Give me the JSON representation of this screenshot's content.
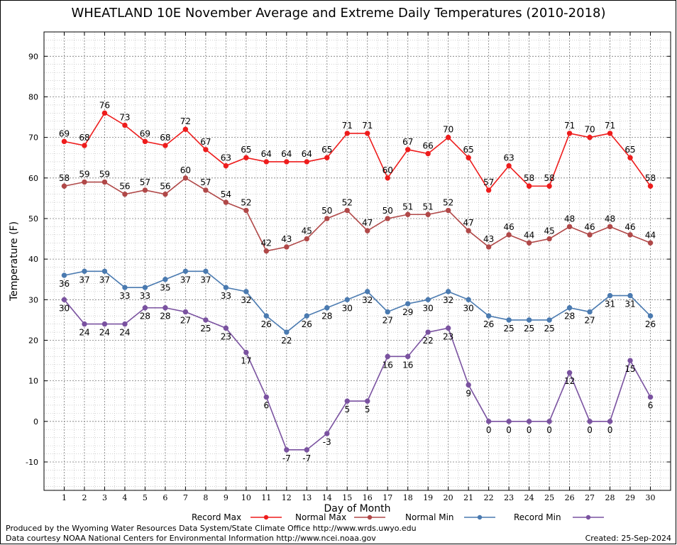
{
  "chart_data": {
    "type": "line",
    "title": "WHEATLAND 10E November Average and Extreme Daily Temperatures (2010-2018)",
    "xlabel": "Day of Month",
    "ylabel": "Temperature (F)",
    "x": [
      1,
      2,
      3,
      4,
      5,
      6,
      7,
      8,
      9,
      10,
      11,
      12,
      13,
      14,
      15,
      16,
      17,
      18,
      19,
      20,
      21,
      22,
      23,
      24,
      25,
      26,
      27,
      28,
      29,
      30
    ],
    "xlim": [
      0,
      31
    ],
    "ylim": [
      -17,
      96
    ],
    "yticks": [
      -10,
      0,
      10,
      20,
      30,
      40,
      50,
      60,
      70,
      80,
      90
    ],
    "grid": true,
    "legend_position": "bottom",
    "series": [
      {
        "name": "Record Max",
        "color": "#ee1c1c",
        "label_side": "above",
        "values": [
          69,
          68,
          76,
          73,
          69,
          68,
          72,
          67,
          63,
          65,
          64,
          64,
          64,
          65,
          71,
          71,
          60,
          67,
          66,
          70,
          65,
          57,
          63,
          58,
          58,
          71,
          70,
          71,
          65,
          58
        ]
      },
      {
        "name": "Normal Max",
        "color": "#b04848",
        "label_side": "above",
        "values": [
          58,
          59,
          59,
          56,
          57,
          56,
          60,
          57,
          54,
          52,
          42,
          43,
          45,
          50,
          52,
          47,
          50,
          51,
          51,
          52,
          47,
          43,
          46,
          44,
          45,
          48,
          46,
          48,
          46,
          44
        ]
      },
      {
        "name": "Normal Min",
        "color": "#4a7ab0",
        "label_side": "below",
        "values": [
          36,
          37,
          37,
          33,
          33,
          35,
          37,
          37,
          33,
          32,
          26,
          22,
          26,
          28,
          30,
          32,
          27,
          29,
          30,
          32,
          30,
          26,
          25,
          25,
          25,
          28,
          27,
          31,
          31,
          26
        ]
      },
      {
        "name": "Record Min",
        "color": "#7a52a0",
        "label_side": "below",
        "values": [
          30,
          24,
          24,
          24,
          28,
          28,
          27,
          25,
          23,
          17,
          6,
          -7,
          -7,
          -3,
          5,
          5,
          16,
          16,
          22,
          23,
          9,
          0,
          0,
          0,
          0,
          12,
          0,
          0,
          15,
          6
        ]
      }
    ]
  },
  "footer": {
    "line1": "Produced by the Wyoming Water Resources Data System/State Climate Office http://www.wrds.uwyo.edu",
    "line2": "Data courtesy NOAA National Centers for Environmental Information http://www.ncei.noaa.gov",
    "created": "Created: 25-Sep-2024"
  }
}
